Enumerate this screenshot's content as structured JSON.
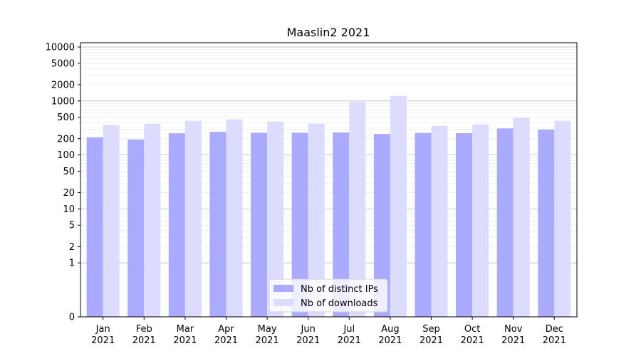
{
  "chart_data": {
    "type": "bar",
    "title": "Maaslin2 2021",
    "xlabel": "",
    "ylabel": "",
    "yscale": "symlog",
    "ylim": [
      0,
      12000
    ],
    "grid": "horizontal",
    "legend_position": "bottom-center",
    "categories": [
      [
        "Jan",
        "2021"
      ],
      [
        "Feb",
        "2021"
      ],
      [
        "Mar",
        "2021"
      ],
      [
        "Apr",
        "2021"
      ],
      [
        "May",
        "2021"
      ],
      [
        "Jun",
        "2021"
      ],
      [
        "Jul",
        "2021"
      ],
      [
        "Aug",
        "2021"
      ],
      [
        "Sep",
        "2021"
      ],
      [
        "Oct",
        "2021"
      ],
      [
        "Nov",
        "2021"
      ],
      [
        "Dec",
        "2021"
      ]
    ],
    "y_ticks": [
      {
        "value": 0,
        "label": "0"
      },
      {
        "value": 1,
        "label": "1"
      },
      {
        "value": 2,
        "label": "2"
      },
      {
        "value": 5,
        "label": "5"
      },
      {
        "value": 10,
        "label": "10"
      },
      {
        "value": 20,
        "label": "20"
      },
      {
        "value": 50,
        "label": "50"
      },
      {
        "value": 100,
        "label": "100"
      },
      {
        "value": 200,
        "label": "200"
      },
      {
        "value": 500,
        "label": "500"
      },
      {
        "value": 1000,
        "label": "1000"
      },
      {
        "value": 2000,
        "label": "2000"
      },
      {
        "value": 5000,
        "label": "5000"
      },
      {
        "value": 10000,
        "label": "10000"
      }
    ],
    "series": [
      {
        "name": "Nb of distinct IPs",
        "color": "#aaaaff",
        "values": [
          212,
          193,
          252,
          268,
          258,
          258,
          260,
          245,
          255,
          253,
          310,
          295
        ]
      },
      {
        "name": "Nb of downloads",
        "color": "#dcdcff",
        "values": [
          360,
          378,
          430,
          458,
          415,
          380,
          960,
          1230,
          345,
          370,
          485,
          430
        ]
      }
    ]
  }
}
